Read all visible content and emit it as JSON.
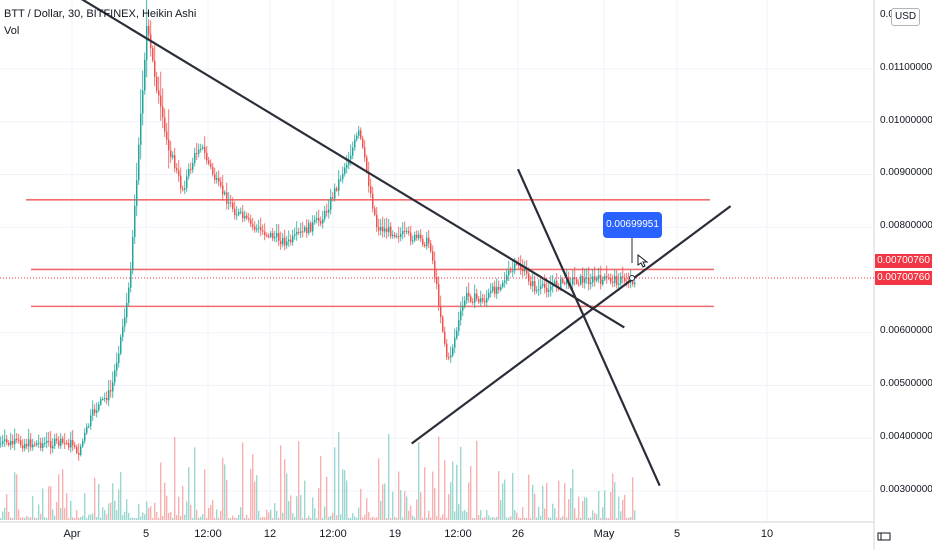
{
  "legend": {
    "symbol": "BTT / Dollar, 30, BITFINEX, Heikin Ashi",
    "volume_label": "Vol"
  },
  "currency_button": "USD",
  "price_axis": {
    "labels": [
      "0.01100000",
      "0.01000000",
      "0.00900000",
      "0.00800000",
      "0.00600000",
      "0.00500000",
      "0.00400000",
      "0.00300000"
    ],
    "top_partial_label": "0.0"
  },
  "price_badges": [
    "0.00700760",
    "0.00700760"
  ],
  "callout_value": "0.00699951",
  "date_axis": [
    "Apr",
    "5",
    "12:00",
    "12",
    "12:00",
    "19",
    "12:00",
    "26",
    "May",
    "5",
    "10"
  ],
  "colors": {
    "up": "#26a69a",
    "down": "#ef5350",
    "trend": "#2a2e39",
    "level": "#f26d6d",
    "callout": "#2962ff",
    "badge": "#f23645"
  },
  "chart_data": {
    "type": "candlestick",
    "title": "BTT / Dollar, 30, BITFINEX, Heikin Ashi",
    "y_ticks": [
      0.003,
      0.004,
      0.005,
      0.006,
      0.008,
      0.009,
      0.01,
      0.011
    ],
    "ylim": [
      0.0025,
      0.0122
    ],
    "last_price": 0.0070076,
    "marked_price": 0.00699951,
    "horizontal_levels": [
      0.00852,
      0.0072,
      0.0065
    ],
    "series_path": [
      {
        "x": "Mar 30",
        "y": 0.0039
      },
      {
        "x": "Apr 1",
        "y": 0.0036
      },
      {
        "x": "Apr 2",
        "y": 0.0045
      },
      {
        "x": "Apr 3",
        "y": 0.0049
      },
      {
        "x": "Apr 4",
        "y": 0.0068
      },
      {
        "x": "Apr 5",
        "y": 0.0118
      },
      {
        "x": "Apr 6",
        "y": 0.0098
      },
      {
        "x": "Apr 7",
        "y": 0.0087
      },
      {
        "x": "Apr 8",
        "y": 0.0096
      },
      {
        "x": "Apr 9",
        "y": 0.0088
      },
      {
        "x": "Apr 10",
        "y": 0.0083
      },
      {
        "x": "Apr 11",
        "y": 0.008
      },
      {
        "x": "Apr 13",
        "y": 0.0077
      },
      {
        "x": "Apr 15",
        "y": 0.0082
      },
      {
        "x": "Apr 17",
        "y": 0.0098
      },
      {
        "x": "Apr 18",
        "y": 0.008
      },
      {
        "x": "Apr 20",
        "y": 0.0078
      },
      {
        "x": "Apr 21",
        "y": 0.0077
      },
      {
        "x": "Apr 22",
        "y": 0.0054
      },
      {
        "x": "Apr 23",
        "y": 0.0067
      },
      {
        "x": "Apr 24",
        "y": 0.0066
      },
      {
        "x": "Apr 26",
        "y": 0.0073
      },
      {
        "x": "Apr 27",
        "y": 0.0068
      },
      {
        "x": "Apr 29",
        "y": 0.007
      },
      {
        "x": "May 1",
        "y": 0.007
      }
    ],
    "trend_lines": [
      {
        "from": {
          "x": "Apr 1",
          "y": 0.0124
        },
        "to": {
          "x": "May 2",
          "y": 0.0061
        }
      },
      {
        "from": {
          "x": "Mar 31",
          "y": 0.0091
        },
        "to": {
          "x": "May 4",
          "y": 0.0031
        }
      },
      {
        "from": {
          "x": "Apr 20",
          "y": 0.0039
        },
        "to": {
          "x": "May 8",
          "y": 0.0084
        }
      }
    ]
  }
}
